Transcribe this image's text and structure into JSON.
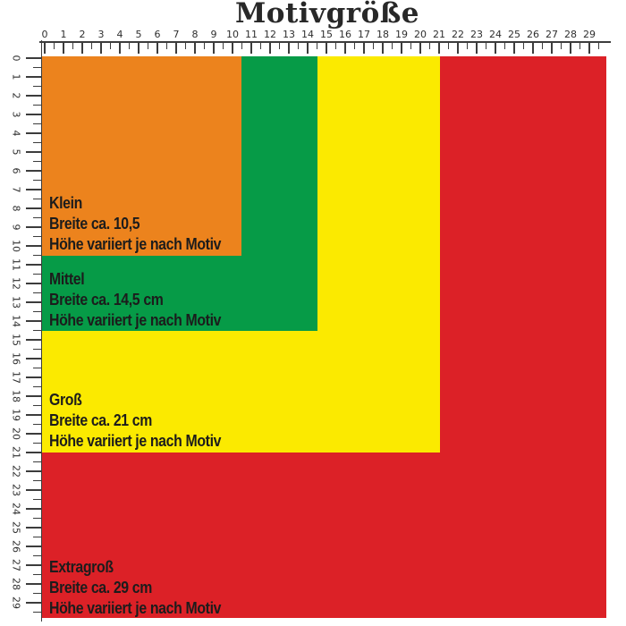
{
  "title": "Motivgröße",
  "ruler": {
    "numbers": [
      "0",
      "1",
      "2",
      "3",
      "4",
      "5",
      "6",
      "7",
      "8",
      "9",
      "10",
      "11",
      "12",
      "13",
      "14",
      "15",
      "16",
      "17",
      "18",
      "19",
      "20",
      "21",
      "22",
      "23",
      "24",
      "25",
      "26",
      "27",
      "28",
      "29"
    ]
  },
  "sizes": [
    {
      "id": "klein",
      "name": "Klein",
      "width_line": "Breite ca. 10,5",
      "height_line": "Höhe variiert je nach Motiv",
      "color": "#EC831D",
      "width_units": 10.5
    },
    {
      "id": "mittel",
      "name": "Mittel",
      "width_line": "Breite ca. 14,5 cm",
      "height_line": "Höhe variiert je nach Motiv",
      "color": "#069B47",
      "width_units": 14.5
    },
    {
      "id": "gross",
      "name": "Groß",
      "width_line": "Breite ca. 21 cm",
      "height_line": "Höhe variiert je nach Motiv",
      "color": "#FBEA00",
      "width_units": 21
    },
    {
      "id": "extragross",
      "name": "Extragroß",
      "width_line": "Breite ca. 29 cm",
      "height_line": "Höhe variiert je nach Motiv",
      "color": "#DC2127",
      "width_units": 29
    }
  ]
}
